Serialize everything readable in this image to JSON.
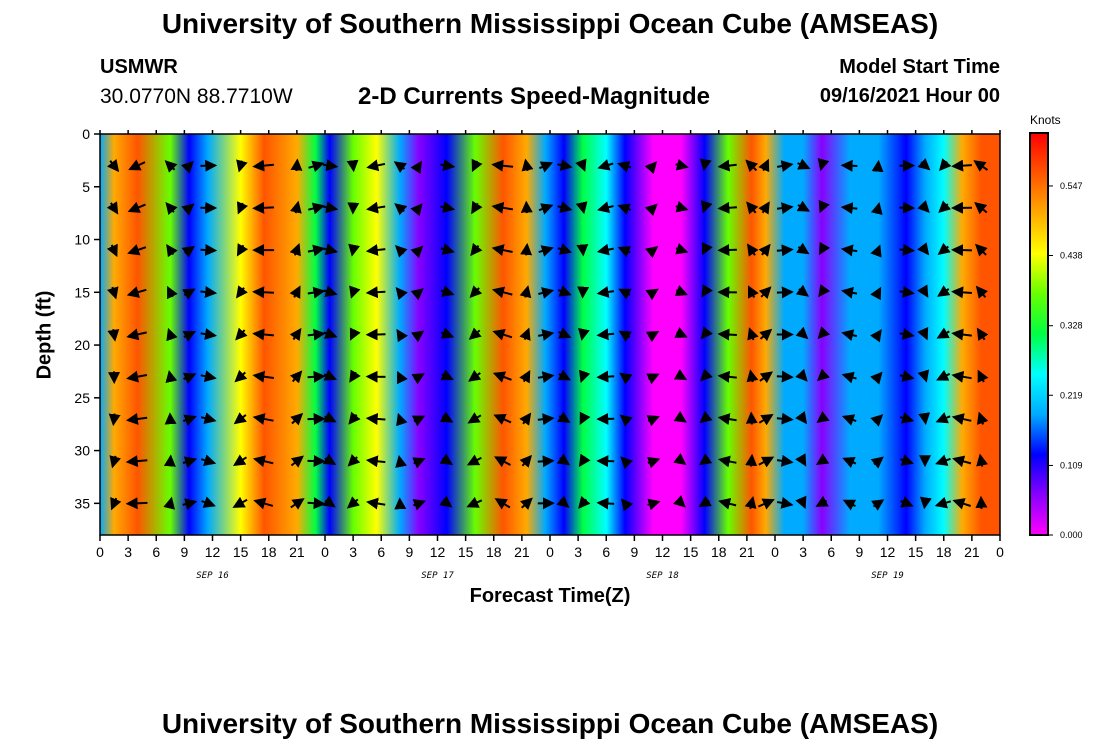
{
  "header": {
    "title": "University of Southern Mississippi Ocean Cube (AMSEAS)",
    "station": "USMWR",
    "coordinates": "30.0770N  88.7710W",
    "product": "2-D Currents Speed-Magnitude",
    "model_start_label": "Model Start Time",
    "model_start_value": "09/16/2021 Hour 00"
  },
  "footer": {
    "title": "University of Southern Mississippi Ocean Cube (AMSEAS)"
  },
  "chart_data": {
    "type": "heatmap",
    "title": "2-D Currents Speed-Magnitude",
    "xlabel": "Forecast Time(Z)",
    "ylabel": "Depth (ft)",
    "x_tick_labels": [
      "0",
      "3",
      "6",
      "9",
      "12",
      "15",
      "18",
      "21",
      "0",
      "3",
      "6",
      "9",
      "12",
      "15",
      "18",
      "21",
      "0",
      "3",
      "6",
      "9",
      "12",
      "15",
      "18",
      "21",
      "0",
      "3",
      "6",
      "9",
      "12",
      "15",
      "18",
      "21",
      "0"
    ],
    "x_range_hours": [
      0,
      96
    ],
    "date_labels": [
      {
        "label": "SEP 16",
        "hour": 12
      },
      {
        "label": "SEP 17",
        "hour": 36
      },
      {
        "label": "SEP 18",
        "hour": 60
      },
      {
        "label": "SEP 19",
        "hour": 84
      }
    ],
    "y_ticks": [
      0,
      5,
      10,
      15,
      20,
      25,
      30,
      35
    ],
    "y_tick_labels": [
      "0",
      "5",
      "10",
      "15",
      "20",
      "25",
      "30",
      "35"
    ],
    "ylim": [
      0,
      38
    ],
    "y_inverted": true,
    "colorbar": {
      "units": "Knots",
      "min": 0.0,
      "max": 0.63,
      "tick_values": [
        0.0,
        0.109,
        0.219,
        0.328,
        0.438,
        0.547
      ],
      "tick_labels": [
        "0.000",
        "0.109",
        "0.219",
        "0.328",
        "0.438",
        "0.547"
      ],
      "colors": [
        "#ff00ff",
        "#8800ff",
        "#0000ff",
        "#00aaff",
        "#00ffff",
        "#00ff44",
        "#66ff00",
        "#ffff00",
        "#ffaa00",
        "#ff5500",
        "#ff0000"
      ]
    },
    "speed_profile_knots": [
      {
        "hour": 0,
        "speed": 0.2
      },
      {
        "hour": 1.5,
        "speed": 0.53
      },
      {
        "hour": 4,
        "speed": 0.56
      },
      {
        "hour": 7.5,
        "speed": 0.38
      },
      {
        "hour": 9.5,
        "speed": 0.14
      },
      {
        "hour": 11.5,
        "speed": 0.2
      },
      {
        "hour": 15,
        "speed": 0.44
      },
      {
        "hour": 17.5,
        "speed": 0.57
      },
      {
        "hour": 21,
        "speed": 0.52
      },
      {
        "hour": 23,
        "speed": 0.3
      },
      {
        "hour": 24.5,
        "speed": 0.12
      },
      {
        "hour": 27,
        "speed": 0.36
      },
      {
        "hour": 29.5,
        "speed": 0.42
      },
      {
        "hour": 32,
        "speed": 0.22
      },
      {
        "hour": 34,
        "speed": 0.06
      },
      {
        "hour": 37,
        "speed": 0.1
      },
      {
        "hour": 40,
        "speed": 0.4
      },
      {
        "hour": 43,
        "speed": 0.59
      },
      {
        "hour": 45.5,
        "speed": 0.5
      },
      {
        "hour": 47.5,
        "speed": 0.22
      },
      {
        "hour": 49.5,
        "speed": 0.15
      },
      {
        "hour": 51.5,
        "speed": 0.3
      },
      {
        "hour": 54,
        "speed": 0.28
      },
      {
        "hour": 56,
        "speed": 0.12
      },
      {
        "hour": 59,
        "speed": 0.03
      },
      {
        "hour": 62,
        "speed": 0.02
      },
      {
        "hour": 64.5,
        "speed": 0.1
      },
      {
        "hour": 67,
        "speed": 0.4
      },
      {
        "hour": 69.5,
        "speed": 0.56
      },
      {
        "hour": 71,
        "speed": 0.5
      },
      {
        "hour": 73,
        "speed": 0.22
      },
      {
        "hour": 75,
        "speed": 0.18
      },
      {
        "hour": 77,
        "speed": 0.08
      },
      {
        "hour": 80,
        "speed": 0.2
      },
      {
        "hour": 83,
        "speed": 0.18
      },
      {
        "hour": 86,
        "speed": 0.12
      },
      {
        "hour": 88,
        "speed": 0.2
      },
      {
        "hour": 90,
        "speed": 0.28
      },
      {
        "hour": 92,
        "speed": 0.5
      },
      {
        "hour": 94,
        "speed": 0.58
      },
      {
        "hour": 96,
        "speed": 0.55
      }
    ]
  }
}
